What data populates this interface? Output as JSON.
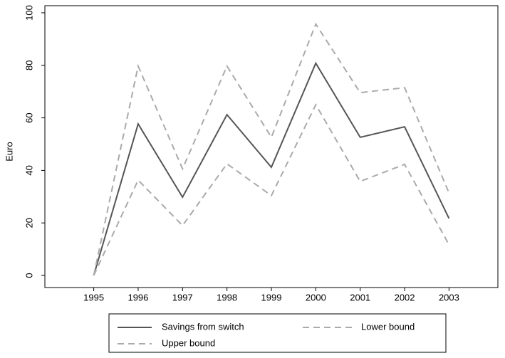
{
  "chart_data": {
    "type": "line",
    "y_label": "Euro",
    "x": [
      1995,
      1996,
      1997,
      1998,
      1999,
      2000,
      2001,
      2002,
      2003
    ],
    "series": [
      {
        "name": "Savings from switch",
        "color": "#555555",
        "dash": "solid",
        "values": [
          0,
          57.7,
          29.8,
          61.2,
          41.2,
          80.8,
          52.6,
          56.6,
          21.7
        ]
      },
      {
        "name": "Lower bound",
        "color": "#aaaaaa",
        "dash": "dashed",
        "values": [
          0,
          36.3,
          19,
          42.5,
          30.4,
          65,
          35.8,
          42.3,
          11.7
        ]
      },
      {
        "name": "Upper bound",
        "color": "#aaaaaa",
        "dash": "dashed",
        "values": [
          0,
          79.7,
          40.6,
          79.7,
          52.6,
          95.7,
          69.6,
          71.5,
          31.4
        ]
      }
    ],
    "xlim": [
      1993.9,
      2004.1
    ],
    "xticks": [
      1995,
      1996,
      1997,
      1998,
      1999,
      2000,
      2001,
      2002,
      2003
    ],
    "ylim": [
      -4.6,
      102.7
    ],
    "yticks": [
      0,
      20,
      40,
      60,
      80,
      100
    ],
    "grid": false,
    "legend": "bottom"
  }
}
